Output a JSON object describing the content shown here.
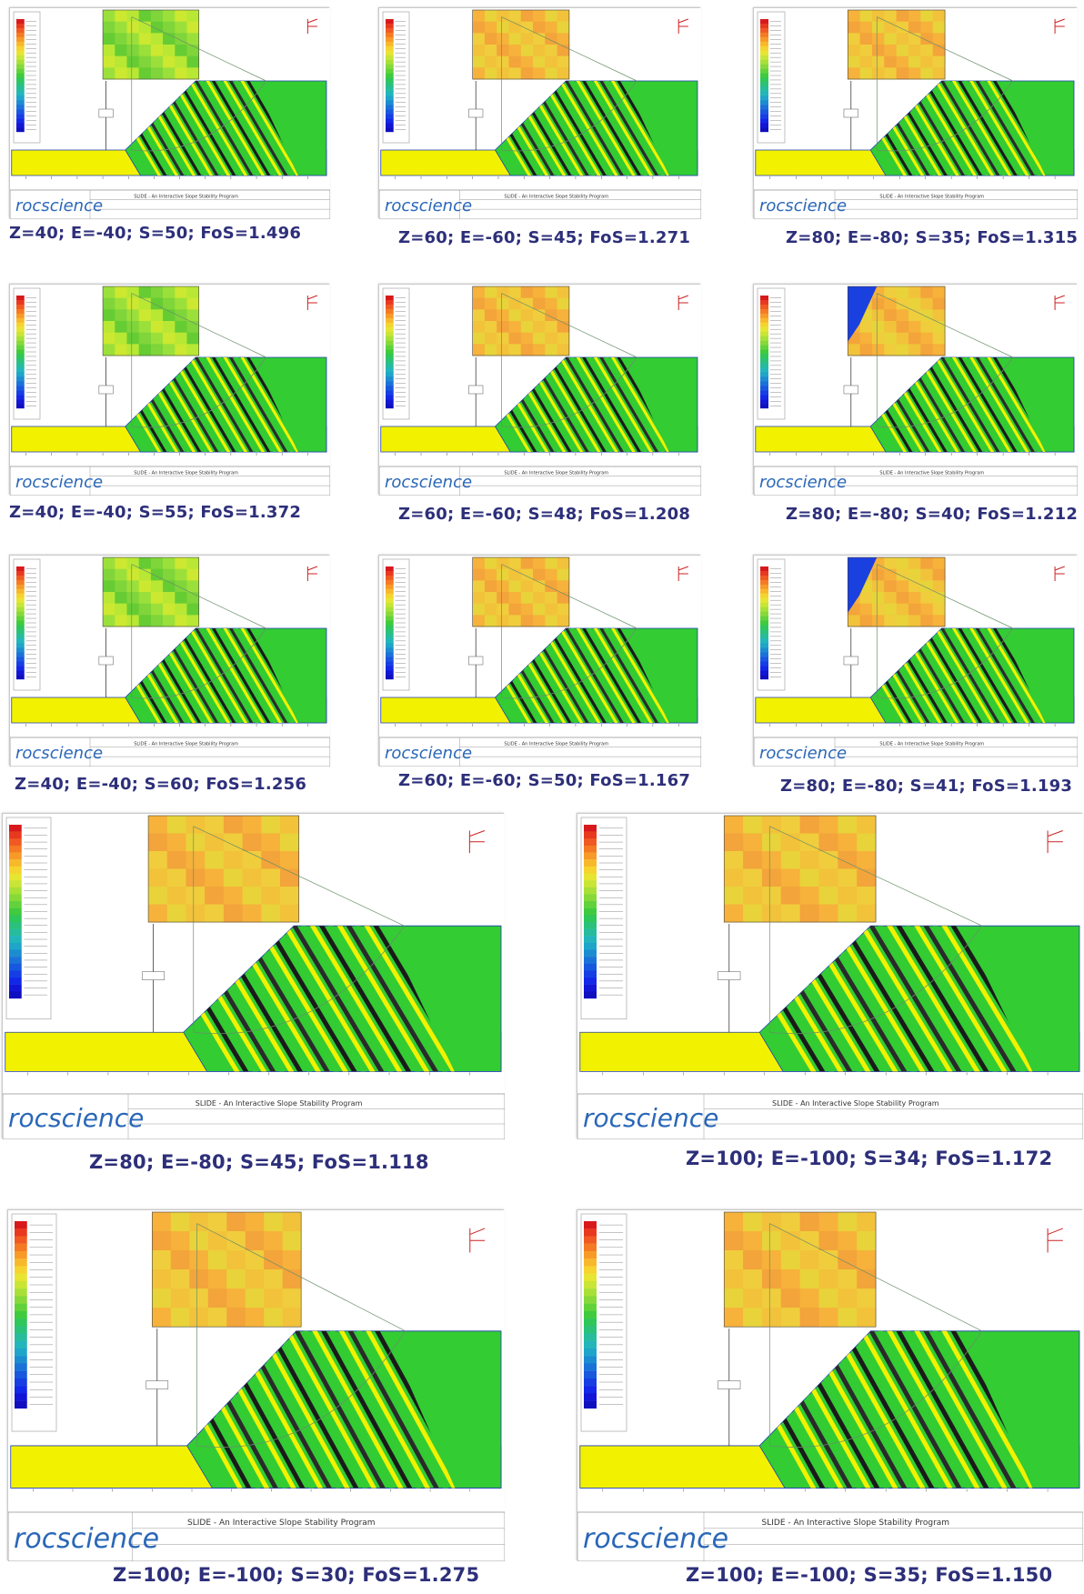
{
  "software": {
    "logo": "rocscience",
    "legend_title": "Safety Factor",
    "program_title": "SLIDE - An Interactive Slope Stability Program",
    "scale_labels": [
      "0.000",
      "0.250",
      "0.500",
      "0.750",
      "1.000",
      "1.250",
      "1.500",
      "1.750",
      "2.000",
      "2.250",
      "2.500",
      "2.750",
      "3.000",
      "3.250",
      "3.500",
      "3.750",
      "4.000",
      "4.250",
      "4.500",
      "4.750",
      "5.000",
      "5.250",
      "5.500",
      "5.750",
      "6.000+"
    ]
  },
  "colors": {
    "zone_yellow": "#f2f200",
    "zone_green": "#33cc33",
    "border": "#1f3fb0",
    "caption": "#2d2f7a"
  },
  "analyses": [
    {
      "caption": "Z=40; E=-40; S=50; FoS=1.496",
      "Z": 40,
      "E": -40,
      "S": 50,
      "FoS": 1.496,
      "grid_palette": "greens"
    },
    {
      "caption": "Z=60; E=-60; S=45; FoS=1.271",
      "Z": 60,
      "E": -60,
      "S": 45,
      "FoS": 1.271,
      "grid_palette": "oranges"
    },
    {
      "caption": "Z=80; E=-80; S=35; FoS=1.315",
      "Z": 80,
      "E": -80,
      "S": 35,
      "FoS": 1.315,
      "grid_palette": "oranges"
    },
    {
      "caption": "Z=40; E=-40; S=55; FoS=1.372",
      "Z": 40,
      "E": -40,
      "S": 55,
      "FoS": 1.372,
      "grid_palette": "greens"
    },
    {
      "caption": "Z=60; E=-60; S=48; FoS=1.208",
      "Z": 60,
      "E": -60,
      "S": 48,
      "FoS": 1.208,
      "grid_palette": "oranges"
    },
    {
      "caption": "Z=80; E=-80; S=40; FoS=1.212",
      "Z": 80,
      "E": -80,
      "S": 40,
      "FoS": 1.212,
      "grid_palette": "blues"
    },
    {
      "caption": "Z=40; E=-40; S=60; FoS=1.256",
      "Z": 40,
      "E": -40,
      "S": 60,
      "FoS": 1.256,
      "grid_palette": "greens"
    },
    {
      "caption": "Z=60; E=-60; S=50; FoS=1.167",
      "Z": 60,
      "E": -60,
      "S": 50,
      "FoS": 1.167,
      "grid_palette": "oranges"
    },
    {
      "caption": "Z=80; E=-80; S=41; FoS=1.193",
      "Z": 80,
      "E": -80,
      "S": 41,
      "FoS": 1.193,
      "grid_palette": "blues"
    },
    {
      "caption": "Z=80; E=-80; S=45; FoS=1.118",
      "Z": 80,
      "E": -80,
      "S": 45,
      "FoS": 1.118,
      "grid_palette": "oranges"
    },
    {
      "caption": "Z=100; E=-100; S=34; FoS=1.172",
      "Z": 100,
      "E": -100,
      "S": 34,
      "FoS": 1.172,
      "grid_palette": "oranges"
    },
    {
      "caption": "Z=100; E=-100; S=30; FoS=1.275",
      "Z": 100,
      "E": -100,
      "S": 30,
      "FoS": 1.275,
      "grid_palette": "oranges"
    },
    {
      "caption": "Z=100; E=-100; S=35; FoS=1.150",
      "Z": 100,
      "E": -100,
      "S": 35,
      "FoS": 1.15,
      "grid_palette": "oranges"
    }
  ]
}
